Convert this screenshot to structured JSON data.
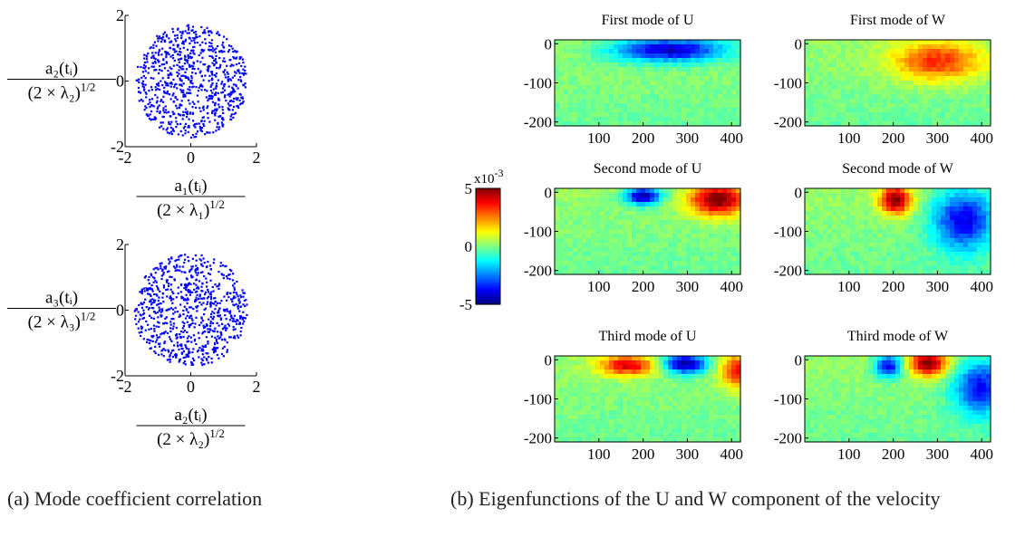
{
  "figure": {
    "captions": {
      "a": "(a) Mode coefficient correlation",
      "b": "(b) Eigenfunctions of the U and W component of the velocity"
    }
  },
  "chart_data": [
    {
      "type": "scatter",
      "panel": "a-top",
      "xlabel_parts": {
        "num": "a₁(tᵢ)",
        "den": "(2 × λ₁)",
        "exp": "1/2"
      },
      "ylabel_parts": {
        "num": "a₂(tᵢ)",
        "den": "(2 × λ₂)",
        "exp": "1/2"
      },
      "xlim": [
        -2,
        2
      ],
      "ylim": [
        -2,
        2
      ],
      "xticks": [
        "-2",
        "0",
        "2"
      ],
      "yticks": [
        "-2",
        "0",
        "2"
      ],
      "distribution": "approximately uniform disk of about 800 points, radius about 1.7",
      "point_color": "#0000ff"
    },
    {
      "type": "scatter",
      "panel": "a-bottom",
      "xlabel_parts": {
        "num": "a₂(tᵢ)",
        "den": "(2 × λ₂)",
        "exp": "1/2"
      },
      "ylabel_parts": {
        "num": "a₃(tᵢ)",
        "den": "(2 × λ₃)",
        "exp": "1/2"
      },
      "xlim": [
        -2,
        2
      ],
      "ylim": [
        -2,
        2
      ],
      "xticks": [
        "-2",
        "0",
        "2"
      ],
      "yticks": [
        "-2",
        "0",
        "2"
      ],
      "distribution": "approximately uniform disk of about 800 points, radius about 1.7",
      "point_color": "#0000ff"
    },
    {
      "type": "heatmap",
      "panel": "b",
      "colormap": "jet",
      "colorbar": {
        "min": -5,
        "max": 5,
        "ticks": [
          "5",
          "0",
          "-5"
        ],
        "multiplier": "x10",
        "exponent": "-3"
      },
      "x_ticks": [
        "100",
        "200",
        "300",
        "400"
      ],
      "y_ticks": [
        "0",
        "-100",
        "-200"
      ],
      "xlim": [
        0,
        420
      ],
      "ylim": [
        -210,
        10
      ],
      "panels": [
        {
          "title": "First mode of U",
          "blobs": [
            {
              "x": 260,
              "y": -15,
              "sx": 90,
              "sy": 22,
              "value": -0.9
            }
          ]
        },
        {
          "title": "First mode of W",
          "blobs": [
            {
              "x": 300,
              "y": -45,
              "sx": 70,
              "sy": 35,
              "value": 0.65
            }
          ]
        },
        {
          "title": "Second mode of U",
          "blobs": [
            {
              "x": 200,
              "y": -10,
              "sx": 28,
              "sy": 16,
              "value": -1.0
            },
            {
              "x": 370,
              "y": -20,
              "sx": 45,
              "sy": 28,
              "value": 1.0
            }
          ]
        },
        {
          "title": "Second mode of W",
          "blobs": [
            {
              "x": 205,
              "y": -20,
              "sx": 25,
              "sy": 25,
              "value": 1.0
            },
            {
              "x": 360,
              "y": -70,
              "sx": 50,
              "sy": 55,
              "value": -0.8
            }
          ]
        },
        {
          "title": "Third mode of U",
          "blobs": [
            {
              "x": 165,
              "y": -15,
              "sx": 45,
              "sy": 18,
              "value": 0.8
            },
            {
              "x": 295,
              "y": -10,
              "sx": 35,
              "sy": 18,
              "value": -1.0
            },
            {
              "x": 410,
              "y": -30,
              "sx": 25,
              "sy": 30,
              "value": 0.7
            }
          ]
        },
        {
          "title": "Third mode of W",
          "blobs": [
            {
              "x": 190,
              "y": -15,
              "sx": 22,
              "sy": 20,
              "value": -0.8
            },
            {
              "x": 280,
              "y": -10,
              "sx": 30,
              "sy": 22,
              "value": 1.0
            },
            {
              "x": 400,
              "y": -70,
              "sx": 45,
              "sy": 50,
              "value": -0.75
            }
          ]
        }
      ]
    }
  ]
}
